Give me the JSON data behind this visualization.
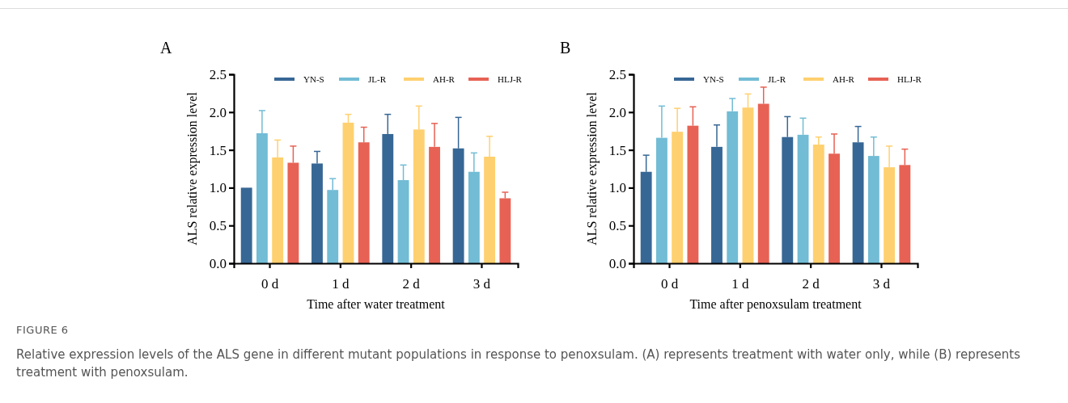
{
  "chart_data": [
    {
      "type": "bar",
      "title": "A",
      "xlabel": "Time after water treatment",
      "ylabel": "ALS relative expression level",
      "categories": [
        "0 d",
        "1 d",
        "2 d",
        "3 d"
      ],
      "ylim": [
        0,
        2.5
      ],
      "yticks": [
        {
          "value": 0,
          "label": "0.0"
        },
        {
          "value": 0.5,
          "label": "0.5"
        },
        {
          "value": 1,
          "label": "1.0"
        },
        {
          "value": 1.5,
          "label": "1.5"
        },
        {
          "value": 2,
          "label": "2.0"
        },
        {
          "value": 2.5,
          "label": "2.5"
        }
      ],
      "legend": "top",
      "grid": false,
      "series": [
        {
          "name": "YN-S",
          "color": "#376795",
          "values": [
            1.0,
            1.32,
            1.71,
            1.52
          ],
          "errors": [
            null,
            [
              1.32,
              1.48
            ],
            [
              1.71,
              1.97
            ],
            [
              1.52,
              1.93
            ]
          ]
        },
        {
          "name": "JL-R",
          "color": "#72bcd5",
          "values": [
            1.72,
            0.97,
            1.1,
            1.21
          ],
          "errors": [
            [
              1.72,
              2.02
            ],
            [
              0.97,
              1.12
            ],
            [
              1.1,
              1.3
            ],
            [
              1.21,
              1.46
            ]
          ]
        },
        {
          "name": "AH-R",
          "color": "#ffd06f",
          "values": [
            1.4,
            1.86,
            1.77,
            1.41
          ],
          "errors": [
            [
              1.4,
              1.63
            ],
            [
              1.86,
              1.97
            ],
            [
              1.77,
              2.08
            ],
            [
              1.41,
              1.68
            ]
          ]
        },
        {
          "name": "HLJ-R",
          "color": "#e76254",
          "values": [
            1.33,
            1.6,
            1.54,
            0.86
          ],
          "errors": [
            [
              1.33,
              1.55
            ],
            [
              1.6,
              1.8
            ],
            [
              1.54,
              1.85
            ],
            [
              0.86,
              0.94
            ]
          ]
        }
      ],
      "annotations": [
        "FIGURE 6",
        "Relative expression levels of the ALS gene in different mutant populations in response to penoxsulam. (A) represents treatment with water only, while (B) represents treatment with penoxsulam."
      ]
    },
    {
      "type": "bar",
      "title": "B",
      "xlabel": "Time after penoxsulam treatment",
      "ylabel": "ALS relative expression level",
      "categories": [
        "0 d",
        "1 d",
        "2 d",
        "3 d"
      ],
      "ylim": [
        0,
        2.5
      ],
      "yticks": [
        {
          "value": 0,
          "label": "0.0"
        },
        {
          "value": 0.5,
          "label": "0.5"
        },
        {
          "value": 1,
          "label": "1.0"
        },
        {
          "value": 1.5,
          "label": "1.5"
        },
        {
          "value": 2,
          "label": "2.0"
        },
        {
          "value": 2.5,
          "label": "2.5"
        }
      ],
      "legend": "top",
      "grid": false,
      "series": [
        {
          "name": "YN-S",
          "color": "#376795",
          "values": [
            1.21,
            1.54,
            1.67,
            1.6
          ],
          "errors": [
            [
              1.21,
              1.43
            ],
            [
              1.54,
              1.83
            ],
            [
              1.67,
              1.94
            ],
            [
              1.6,
              1.81
            ]
          ]
        },
        {
          "name": "JL-R",
          "color": "#72bcd5",
          "values": [
            1.66,
            2.01,
            1.7,
            1.42
          ],
          "errors": [
            [
              1.66,
              2.08
            ],
            [
              2.01,
              2.18
            ],
            [
              1.7,
              1.92
            ],
            [
              1.42,
              1.67
            ]
          ]
        },
        {
          "name": "AH-R",
          "color": "#ffd06f",
          "values": [
            1.74,
            2.06,
            1.57,
            1.27
          ],
          "errors": [
            [
              1.74,
              2.05
            ],
            [
              2.06,
              2.24
            ],
            [
              1.57,
              1.67
            ],
            [
              1.27,
              1.55
            ]
          ]
        },
        {
          "name": "HLJ-R",
          "color": "#e76254",
          "values": [
            1.82,
            2.11,
            1.45,
            1.3
          ],
          "errors": [
            [
              1.82,
              2.07
            ],
            [
              2.11,
              2.33
            ],
            [
              1.45,
              1.71
            ],
            [
              1.3,
              1.51
            ]
          ]
        }
      ]
    }
  ]
}
